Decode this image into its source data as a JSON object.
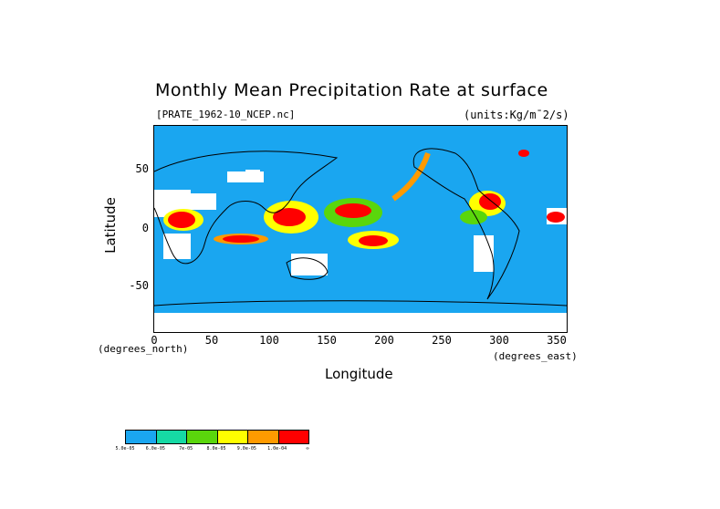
{
  "title": "Monthly Mean Precipitation Rate at surface",
  "source_label": "[PRATE_1962-10_NCEP.nc]",
  "units_label": "(units:Kg/m¯2/s)",
  "axes": {
    "ylabel": "Latitude",
    "xlabel": "Longitude",
    "y_note": "(degrees_north)",
    "x_note": "(degrees_east)",
    "y_ticks": [
      "50",
      "0",
      "-50"
    ],
    "x_ticks": [
      "0",
      "50",
      "100",
      "150",
      "200",
      "250",
      "300",
      "350"
    ],
    "y_range": [
      -90,
      90
    ],
    "x_range": [
      0,
      360
    ]
  },
  "legend": {
    "colors": [
      "#1aa6f0",
      "#16d9a4",
      "#5ad60c",
      "#ffff00",
      "#ff9a00",
      "#ff0000"
    ],
    "labels": [
      "5.0e-05",
      "6.0e-05",
      "7e-05",
      "8.0e-05",
      "9.0e-05",
      "1.0e-04",
      "∞"
    ]
  },
  "colors": {
    "ocean_base": "#1aa6f0",
    "no_data": "#ffffff",
    "coast": "#000000"
  }
}
